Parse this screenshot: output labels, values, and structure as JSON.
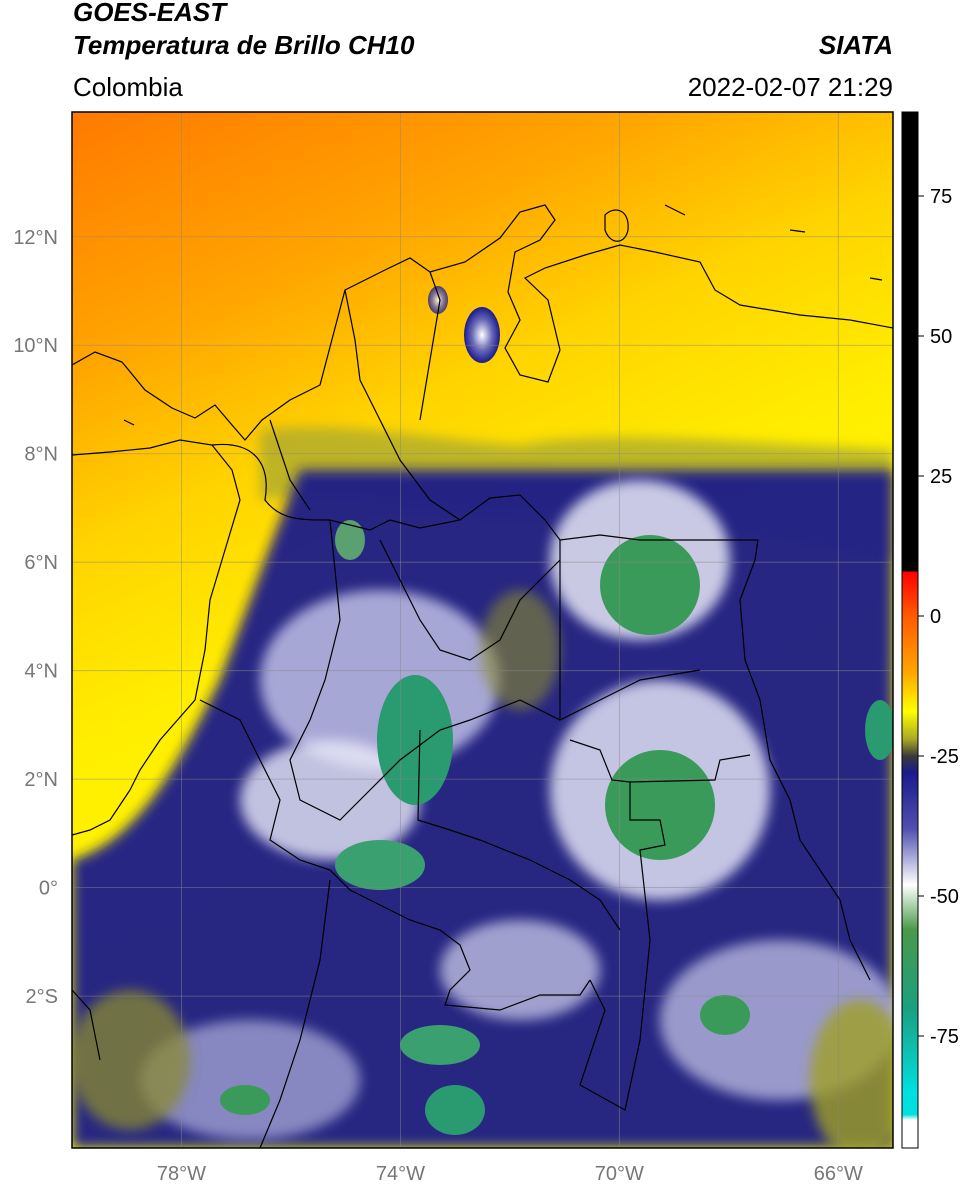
{
  "header": {
    "satellite": "GOES-EAST",
    "product": "Temperatura de Brillo CH10",
    "region": "Colombia",
    "agency": "SIATA",
    "datetime": "2022-02-07 21:29"
  },
  "map": {
    "lon_range": [
      -80,
      -65
    ],
    "lat_range": [
      -4.8,
      14.3
    ],
    "lon_ticks": [
      {
        "value": -78,
        "label": "78°W"
      },
      {
        "value": -74,
        "label": "74°W"
      },
      {
        "value": -70,
        "label": "70°W"
      },
      {
        "value": -66,
        "label": "66°W"
      }
    ],
    "lat_ticks": [
      {
        "value": 12,
        "label": "12°N"
      },
      {
        "value": 10,
        "label": "10°N"
      },
      {
        "value": 8,
        "label": "8°N"
      },
      {
        "value": 6,
        "label": "6°N"
      },
      {
        "value": 4,
        "label": "4°N"
      },
      {
        "value": 2,
        "label": "2°N"
      },
      {
        "value": 0,
        "label": "0°"
      },
      {
        "value": -2,
        "label": "2°S"
      }
    ],
    "grid": true
  },
  "colorbar": {
    "range": [
      -95,
      90
    ],
    "ticks": [
      {
        "value": 75,
        "label": "75"
      },
      {
        "value": 50,
        "label": "50"
      },
      {
        "value": 25,
        "label": "25"
      },
      {
        "value": 0,
        "label": "0"
      },
      {
        "value": -25,
        "label": "-25"
      },
      {
        "value": -50,
        "label": "-50"
      },
      {
        "value": -75,
        "label": "-75"
      }
    ],
    "stops": [
      {
        "value": 90,
        "color": "#000000"
      },
      {
        "value": 8,
        "color": "#000000"
      },
      {
        "value": 7.9,
        "color": "#ff0000"
      },
      {
        "value": 0,
        "color": "#ff5a00"
      },
      {
        "value": -10,
        "color": "#ffa500"
      },
      {
        "value": -17,
        "color": "#ffff00"
      },
      {
        "value": -22,
        "color": "#a8a824"
      },
      {
        "value": -25,
        "color": "#3a3a3a"
      },
      {
        "value": -28,
        "color": "#1a1a8c"
      },
      {
        "value": -38,
        "color": "#5050b0"
      },
      {
        "value": -48,
        "color": "#ffffff"
      },
      {
        "value": -56,
        "color": "#4a9a4a"
      },
      {
        "value": -70,
        "color": "#1aa080"
      },
      {
        "value": -85,
        "color": "#00e0e0"
      },
      {
        "value": -89,
        "color": "#00e0e0"
      },
      {
        "value": -90,
        "color": "#ffffff"
      },
      {
        "value": -95,
        "color": "#ffffff"
      }
    ]
  }
}
